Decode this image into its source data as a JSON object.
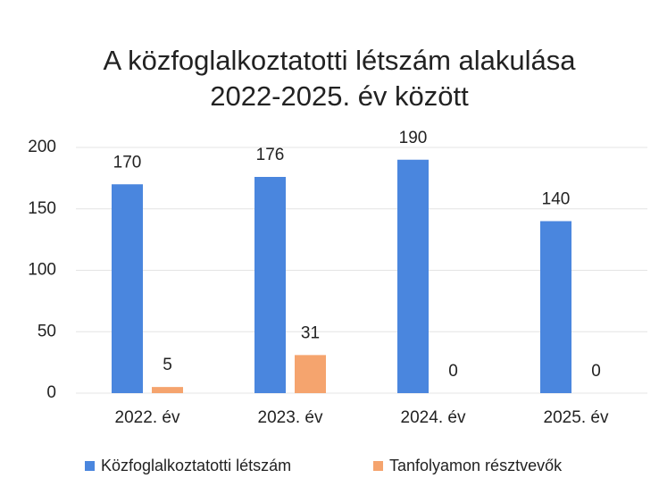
{
  "chart_data": {
    "type": "bar",
    "title": [
      "A közfoglalkoztatotti létszám alakulása",
      "2022-2025. év között"
    ],
    "categories": [
      "2022. év",
      "2023. év",
      "2024. év",
      "2025. év"
    ],
    "series": [
      {
        "name": "Közfoglalkoztatotti létszám",
        "color": "#4a86de",
        "values": [
          170,
          176,
          190,
          140
        ]
      },
      {
        "name": "Tanfolyamon résztvevők",
        "color": "#f5a46e",
        "values": [
          5,
          31,
          0,
          0
        ]
      }
    ],
    "ylim": [
      0,
      200
    ],
    "yticks": [
      0,
      50,
      100,
      150,
      200
    ],
    "grid": true,
    "legend": "bottom"
  }
}
